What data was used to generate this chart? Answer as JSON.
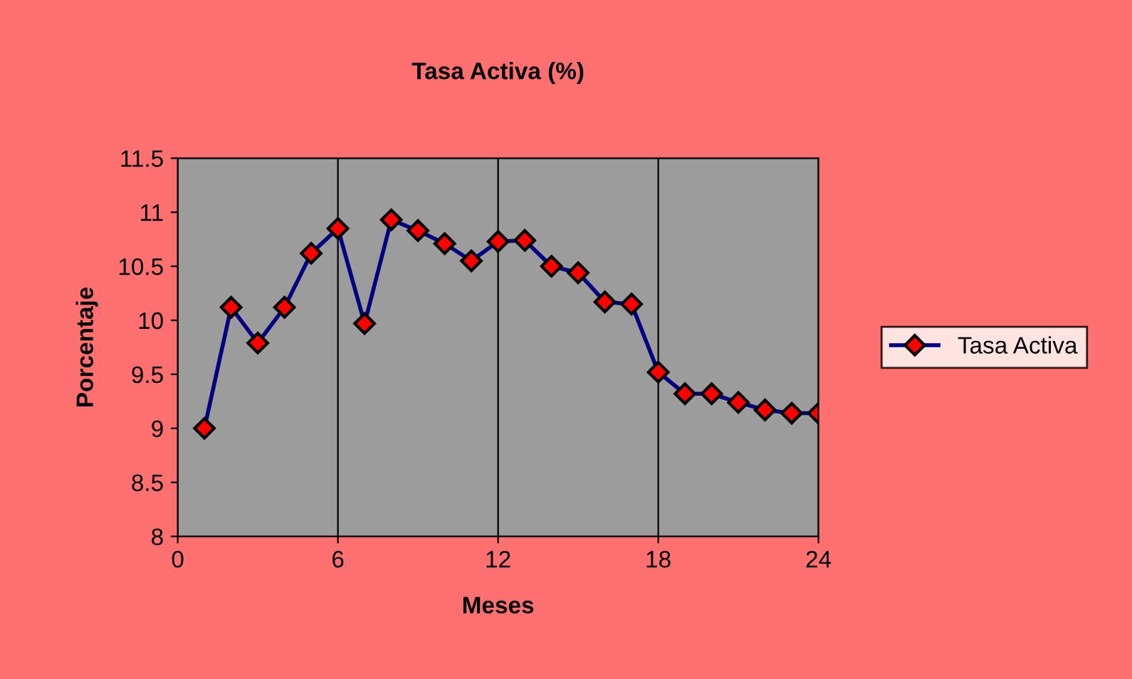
{
  "chart_data": {
    "type": "line",
    "title": "Tasa Activa (%)",
    "xlabel": "Meses",
    "ylabel": "Porcentaje",
    "x": [
      1,
      2,
      3,
      4,
      5,
      6,
      7,
      8,
      9,
      10,
      11,
      12,
      13,
      14,
      15,
      16,
      17,
      18,
      19,
      20,
      21,
      22,
      23,
      24
    ],
    "series": [
      {
        "name": "Tasa Activa",
        "color": "#000080",
        "values": [
          9.0,
          10.12,
          9.79,
          10.12,
          10.62,
          10.85,
          9.97,
          10.93,
          10.83,
          10.71,
          10.55,
          10.73,
          10.74,
          10.5,
          10.44,
          10.17,
          10.15,
          9.52,
          9.32,
          9.32,
          9.24,
          9.17,
          9.14,
          9.14
        ]
      }
    ],
    "xlim": [
      0,
      24
    ],
    "xticks": [
      0,
      6,
      12,
      18,
      24
    ],
    "ylim": [
      8,
      11.5
    ],
    "yticks": [
      8,
      8.5,
      9,
      9.5,
      10,
      10.5,
      11,
      11.5
    ],
    "grid": "x",
    "legend": "right",
    "marker": "diamond",
    "line_style": "solid"
  }
}
